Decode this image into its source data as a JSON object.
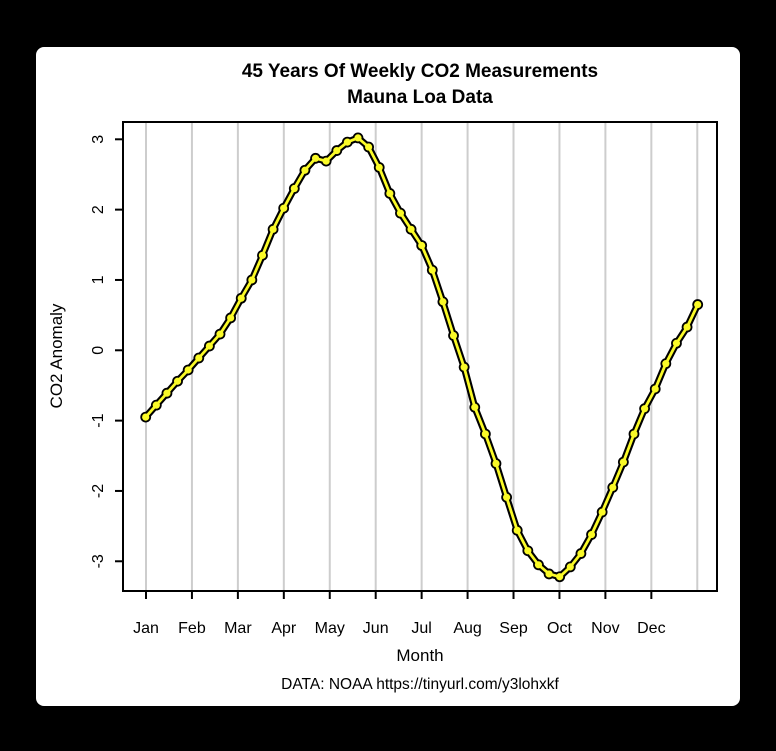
{
  "colors": {
    "page_background": "#000000",
    "panel_background": "#ffffff",
    "gridline": "#cdcdcd",
    "axis": "#000000",
    "text": "#000000",
    "line_outline": "#000000",
    "marker_fill": "#FAFA28"
  },
  "chart_data": {
    "type": "line",
    "title": "45 Years Of Weekly CO2 Measurements",
    "subtitle": "Mauna Loa Data",
    "xlabel": "Month",
    "ylabel": "CO2 Anomaly",
    "caption": "DATA: NOAA https://tinyurl.com/y3lohxkf",
    "x_tick_labels": [
      "Jan",
      "Feb",
      "Mar",
      "Apr",
      "May",
      "Jun",
      "Jul",
      "Aug",
      "Sep",
      "Oct",
      "Nov",
      "Dec"
    ],
    "y_ticks": [
      3,
      2,
      1,
      0,
      -1,
      -2,
      -3
    ],
    "ylim": [
      -3.4,
      3.25
    ],
    "grid": "vertical gridlines at each month boundary (13 lines), no horizontal grid",
    "legend_position": "none",
    "marker_style": "filled yellow circles with black outline on thick black line",
    "x_description": "53 weekly values spanning Jan 1 through Dec 31 (average seasonal cycle)",
    "series": [
      {
        "name": "Weekly CO2 anomaly seasonal cycle",
        "x_start_month": 1.0,
        "x_step_months": 0.230769,
        "values": [
          -0.95,
          -0.78,
          -0.61,
          -0.44,
          -0.28,
          -0.11,
          0.06,
          0.23,
          0.46,
          0.74,
          1.0,
          1.35,
          1.72,
          2.02,
          2.3,
          2.56,
          2.73,
          2.69,
          2.84,
          2.96,
          3.02,
          2.89,
          2.6,
          2.23,
          1.95,
          1.72,
          1.49,
          1.14,
          0.69,
          0.21,
          -0.24,
          -0.81,
          -1.19,
          -1.61,
          -2.09,
          -2.56,
          -2.85,
          -3.05,
          -3.18,
          -3.22,
          -3.08,
          -2.89,
          -2.62,
          -2.3,
          -1.95,
          -1.59,
          -1.19,
          -0.83,
          -0.55,
          -0.19,
          0.1,
          0.33,
          0.65
        ]
      }
    ]
  }
}
